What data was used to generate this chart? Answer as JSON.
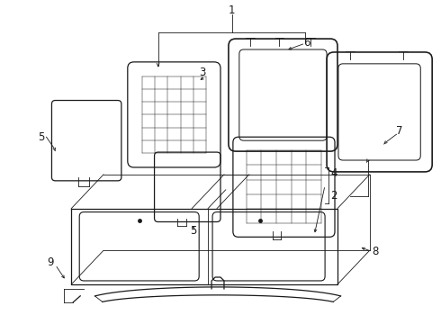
{
  "bg_color": "#ffffff",
  "line_color": "#1a1a1a",
  "line_width": 0.9,
  "thin_line": 0.6,
  "label_fontsize": 8.5,
  "fig_width": 4.9,
  "fig_height": 3.6,
  "dpi": 100
}
